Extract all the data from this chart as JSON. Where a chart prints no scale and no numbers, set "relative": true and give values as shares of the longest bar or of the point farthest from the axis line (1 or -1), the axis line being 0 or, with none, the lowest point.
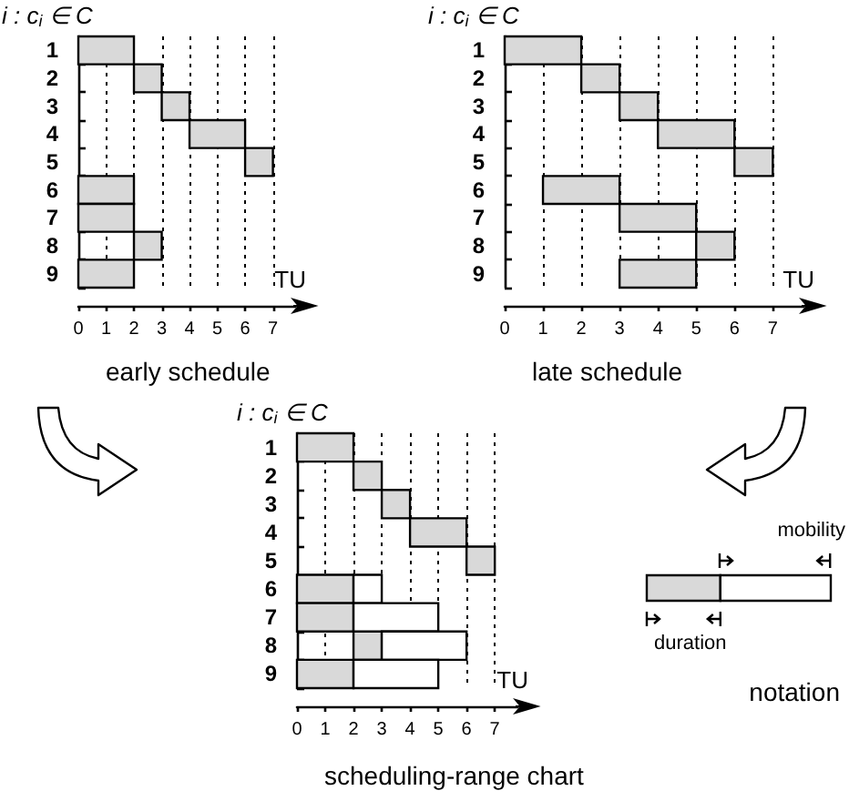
{
  "chart_data": [
    {
      "type": "bar",
      "orientation": "horizontal",
      "title": "early schedule",
      "ylabel": "i : c$_{i}$ ∈ C",
      "xlabel": "TU",
      "categories": [
        "1",
        "2",
        "3",
        "4",
        "5",
        "6",
        "7",
        "8",
        "9"
      ],
      "base": [
        0,
        2,
        3,
        4,
        6,
        0,
        0,
        2,
        0
      ],
      "values": [
        2,
        1,
        1,
        2,
        1,
        2,
        2,
        1,
        2
      ],
      "color": "#d9d9d9",
      "xlim": [
        0,
        7.8
      ],
      "xticks": [
        0,
        1,
        2,
        3,
        4,
        5,
        6,
        7
      ],
      "grid": "x"
    },
    {
      "type": "bar",
      "orientation": "horizontal",
      "title": "late schedule",
      "ylabel": "i : c$_{i}$ ∈ C",
      "xlabel": "TU",
      "categories": [
        "1",
        "2",
        "3",
        "4",
        "5",
        "6",
        "7",
        "8",
        "9"
      ],
      "base": [
        0,
        2,
        3,
        4,
        6,
        1,
        3,
        5,
        3
      ],
      "values": [
        2,
        1,
        1,
        2,
        1,
        2,
        2,
        1,
        2
      ],
      "color": "#d9d9d9",
      "xlim": [
        0,
        7.8
      ],
      "xticks": [
        0,
        1,
        2,
        3,
        4,
        5,
        6,
        7
      ],
      "grid": "x"
    },
    {
      "type": "bar",
      "orientation": "horizontal",
      "title": "scheduling-range chart",
      "ylabel": "i : c$_{i}$ ∈ C",
      "xlabel": "TU",
      "categories": [
        "1",
        "2",
        "3",
        "4",
        "5",
        "6",
        "7",
        "8",
        "9"
      ],
      "series": [
        {
          "color": "#d9d9d9",
          "base": [
            0,
            2,
            3,
            4,
            6,
            0,
            0,
            2,
            0
          ],
          "values": [
            2,
            1,
            1,
            2,
            1,
            2,
            2,
            1,
            2
          ]
        },
        {
          "color": "#ffffff",
          "base": [
            null,
            null,
            null,
            null,
            null,
            2,
            2,
            3,
            2
          ],
          "values": [
            null,
            null,
            null,
            null,
            null,
            1,
            3,
            3,
            3
          ]
        }
      ],
      "xlim": [
        0,
        7.8
      ],
      "xticks": [
        0,
        1,
        2,
        3,
        4,
        5,
        6,
        7
      ],
      "grid": "x"
    },
    {
      "type": "bar",
      "orientation": "horizontal",
      "relative": true,
      "stacked": true,
      "title": "notation",
      "categories": [
        null
      ],
      "series": [
        {
          "color": "#d9d9d9",
          "values": [
            0.4
          ]
        },
        {
          "color": "#ffffff",
          "values": [
            0.6
          ]
        }
      ],
      "annotations": [
        "mobility",
        "duration"
      ],
      "tick_labels": false
    }
  ]
}
